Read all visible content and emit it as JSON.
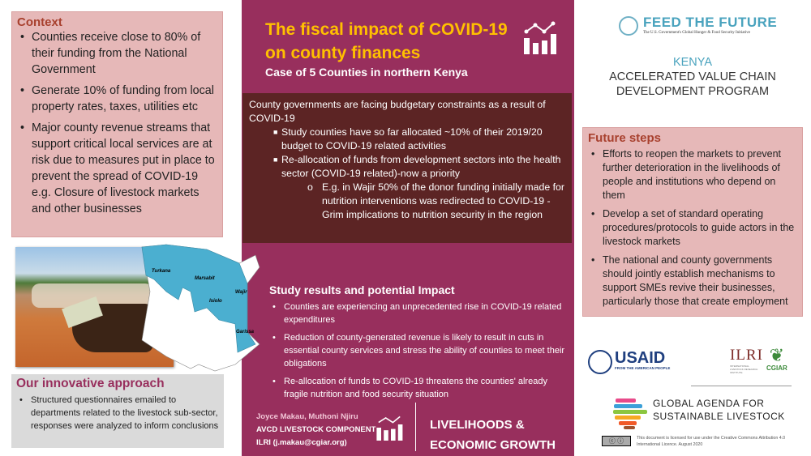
{
  "context": {
    "heading": "Context",
    "bullets": [
      "Counties receive close to 80% of their funding from the National Government",
      "Generate 10% of funding from local property rates, taxes, utilities etc",
      "Major county revenue streams that support critical local services are at risk due to measures put in place to prevent the spread of COVID-19 e.g. Closure of livestock markets and other businesses"
    ]
  },
  "map": {
    "counties": [
      "Turkana",
      "Marsabit",
      "Wajir",
      "Isiolo",
      "Garissa"
    ],
    "highlight_color": "#4BAFD0"
  },
  "approach": {
    "heading": "Our innovative approach",
    "bullets": [
      "Structured questionnaires  emailed to departments related to the livestock sub-sector, responses were analyzed to inform conclusions"
    ]
  },
  "header": {
    "title": "The fiscal impact of COVID-19 on county finances",
    "subtitle": "Case of 5 Counties in northern Kenya",
    "icon": "chart-growth-icon"
  },
  "summary": {
    "intro": "County governments are facing budgetary constraints as a result of COVID-19",
    "points": [
      "Study counties have so far allocated ~10% of their 2019/20 budget to COVID-19 related activities",
      "Re-allocation of funds from development sectors into the health sector (COVID-19 related)-now a priority"
    ],
    "sub_point": "E.g. in Wajir 50% of the donor funding initially made for nutrition interventions was redirected to COVID-19 - Grim implications to nutrition security in the region"
  },
  "results": {
    "heading": "Study results and potential Impact",
    "bullets": [
      "Counties are experiencing an unprecedented rise in COVID-19 related expenditures",
      "Reduction of county-generated revenue is likely to result in cuts in essential county services and stress the ability of counties to meet their obligations",
      "Re-allocation of funds to COVID-19 threatens the counties' already fragile nutrition and food security situation"
    ]
  },
  "footer": {
    "authors": "Joyce Makau, Muthoni Njiru",
    "component": "AVCD LIVESTOCK COMPONENT",
    "contact": "ILRI (j.makau@cgiar.org)",
    "theme_line1": "LIVELIHOODS &",
    "theme_line2": "ECONOMIC GROWTH"
  },
  "program": {
    "logo": "FEED THE FUTURE",
    "logo_tagline": "The U.S. Government's Global Hunger & Food Security Initiative",
    "country": "KENYA",
    "line1": "ACCELERATED VALUE CHAIN",
    "line2": "DEVELOPMENT PROGRAM"
  },
  "future": {
    "heading": "Future steps",
    "bullets": [
      "Efforts to reopen the markets to prevent further deterioration in the livelihoods of people and institutions who depend on them",
      "Develop a set of standard operating procedures/protocols to guide actors in the livestock markets",
      "The national and county governments should jointly establish mechanisms to support SMEs revive their businesses, particularly those that create employment"
    ]
  },
  "logos": {
    "usaid": "USAID",
    "usaid_tag": "FROM THE AMERICAN PEOPLE",
    "ilri": "ILRI",
    "ilri_tag": "INTERNATIONAL LIVESTOCK RESEARCH INSTITUTE",
    "cgiar": "CGIAR",
    "gasl_line1": "GLOBAL AGENDA FOR",
    "gasl_line2": "SUSTAINABLE LIVESTOCK"
  },
  "license": "This document is licensed for use under the Creative Commons Attribution 4.0 International Licence. August 2020",
  "colors": {
    "purple": "#982F5D",
    "gold": "#FFC000",
    "pink": "#E6B8B8",
    "dark": "#5C2424",
    "teal": "#4AA3BE"
  }
}
